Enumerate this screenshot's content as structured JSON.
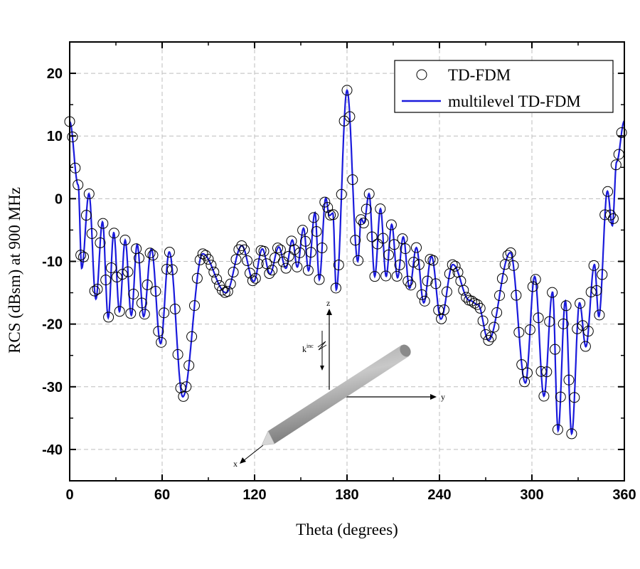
{
  "chart_data": {
    "type": "line",
    "xlabel": "Theta (degrees)",
    "ylabel": "RCS (dBsm) at 900 MHz",
    "xlim": [
      0,
      360
    ],
    "ylim": [
      -45,
      25
    ],
    "xticks": [
      0,
      60,
      120,
      180,
      240,
      300,
      360
    ],
    "yticks": [
      20,
      10,
      0,
      -10,
      -20,
      -30,
      -40
    ],
    "grid": true,
    "legend_position": "top-right",
    "series": [
      {
        "name": "TD-FDM",
        "style": "open-circle-markers",
        "color": "#000000"
      },
      {
        "name": "multilevel TD-FDM",
        "style": "line",
        "color": "#1a1adc"
      }
    ],
    "x": [
      0,
      5.5,
      7.8,
      12.5,
      17,
      21.3,
      25,
      28.6,
      32.3,
      36,
      40,
      43.8,
      48,
      53,
      59,
      64.6,
      73.4,
      86.3,
      101.5,
      111.7,
      119.5,
      125,
      130,
      135.7,
      140.3,
      144.5,
      147.7,
      151.8,
      155,
      159.2,
      162,
      166.2,
      168.5,
      170.8,
      173,
      180,
      187,
      189.2,
      191,
      194.3,
      198,
      201.7,
      205.4,
      209,
      212.8,
      216.5,
      220.6,
      225,
      229.8,
      234.8,
      240.9,
      248.7,
      259.4,
      265,
      271.8,
      286,
      295.8,
      301.8,
      307.8,
      313.4,
      317,
      321.7,
      325.8,
      330.9,
      335,
      340.6,
      343.4,
      349,
      352.2,
      355,
      360
    ],
    "y": [
      12.3,
      2.2,
      -11.1,
      0.8,
      -16,
      -3.7,
      -19,
      -5.4,
      -18,
      -6.6,
      -18.6,
      -7.3,
      -18.8,
      -8,
      -23.1,
      -8.5,
      -31.6,
      -8.8,
      -15,
      -7.5,
      -13.2,
      -8,
      -12,
      -7.7,
      -11.1,
      -6.6,
      -10.9,
      -4.7,
      -11.5,
      -2.2,
      -12.9,
      0.1,
      -2.7,
      -2.3,
      -14.5,
      17.3,
      -10,
      -3.2,
      -3.9,
      0.8,
      -12.4,
      -1.6,
      -12.4,
      -4.1,
      -12.6,
      -6.1,
      -14.3,
      -7.8,
      -16.6,
      -9.2,
      -19.2,
      -10.5,
      -16.2,
      -16.9,
      -22.6,
      -8.6,
      -29.4,
      -12.4,
      -31.5,
      -14.9,
      -37,
      -16.3,
      -37.5,
      -16.6,
      -23.6,
      -10.5,
      -18.8,
      1.2,
      -4.3,
      5.9,
      12.4
    ]
  },
  "inset": {
    "axis_x": "x",
    "axis_y": "y",
    "axis_z": "z",
    "wave_label": "k",
    "wave_sup": "inc"
  }
}
